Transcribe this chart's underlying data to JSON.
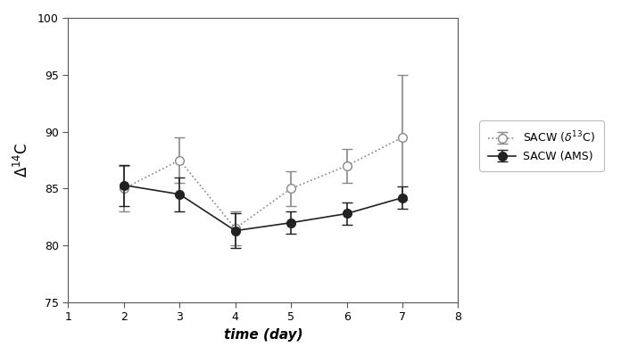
{
  "title": "",
  "xlabel": "time (day)",
  "xlim": [
    1,
    8
  ],
  "ylim": [
    75,
    100
  ],
  "yticks": [
    75,
    80,
    85,
    90,
    95,
    100
  ],
  "xticks": [
    1,
    2,
    3,
    4,
    5,
    6,
    7,
    8
  ],
  "sacw_d13c": {
    "x": [
      2,
      3,
      4,
      5,
      6,
      7
    ],
    "y": [
      85.0,
      87.5,
      81.5,
      85.0,
      87.0,
      89.5
    ],
    "yerr_lo": [
      2.0,
      2.0,
      1.5,
      1.5,
      1.5,
      5.5
    ],
    "yerr_hi": [
      2.0,
      2.0,
      1.5,
      1.5,
      1.5,
      5.5
    ],
    "color": "#888888",
    "linestyle": "dotted",
    "marker": "o",
    "markerfacecolor": "white",
    "label": "SACW (δ¹³C)"
  },
  "sacw_ams": {
    "x": [
      2,
      3,
      4,
      5,
      6,
      7
    ],
    "y": [
      85.3,
      84.5,
      81.3,
      82.0,
      82.8,
      84.2
    ],
    "yerr_lo": [
      1.8,
      1.5,
      1.5,
      1.0,
      1.0,
      1.0
    ],
    "yerr_hi": [
      1.8,
      1.5,
      1.5,
      1.0,
      1.0,
      1.0
    ],
    "color": "#222222",
    "linestyle": "solid",
    "marker": "o",
    "markerfacecolor": "#222222",
    "label": "SACW (AMS)"
  },
  "background_color": "#ffffff",
  "fig_width": 6.96,
  "fig_height": 3.98,
  "dpi": 100
}
